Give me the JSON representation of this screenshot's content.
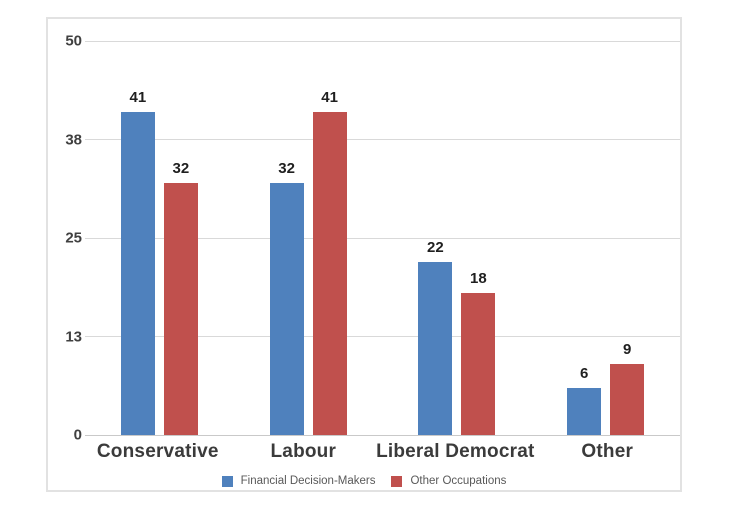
{
  "chart_data": {
    "type": "bar",
    "categories": [
      "Conservative",
      "Labour",
      "Liberal Democrat",
      "Other"
    ],
    "series": [
      {
        "name": "Financial Decision-Makers",
        "color": "#4F81BD",
        "values": [
          41,
          32,
          22,
          6
        ]
      },
      {
        "name": "Other Occupations",
        "color": "#C0504D",
        "values": [
          32,
          41,
          18,
          9
        ]
      }
    ],
    "title": "",
    "xlabel": "",
    "ylabel": "",
    "ylim": [
      0,
      50
    ],
    "yticks": [
      {
        "value": 0,
        "label": "0"
      },
      {
        "value": 12.5,
        "label": "13"
      },
      {
        "value": 25,
        "label": "25"
      },
      {
        "value": 37.5,
        "label": "38"
      },
      {
        "value": 50,
        "label": "50"
      }
    ],
    "grid": true,
    "legend_position": "bottom",
    "data_labels": true
  },
  "colors": {
    "grid": "#d9d9d9",
    "frame_border": "#e2e2e2",
    "axis_text": "#404040",
    "category_text": "#3b3b3b",
    "value_label_text": "#1f1f1f",
    "legend_text": "#595959",
    "background": "#ffffff"
  }
}
